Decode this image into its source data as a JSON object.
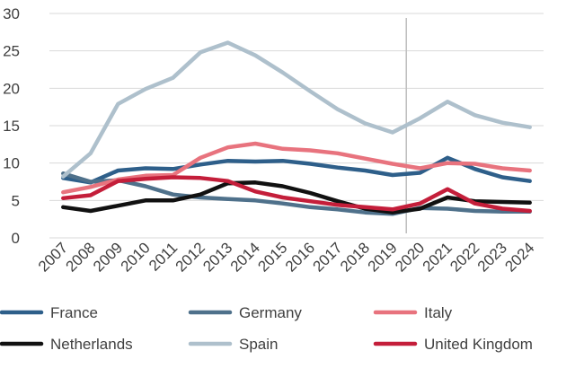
{
  "chart_data": {
    "type": "line",
    "title": "",
    "xlabel": "",
    "ylabel": "",
    "x": [
      "2007",
      "2008",
      "2009",
      "2010",
      "2011",
      "2012",
      "2013",
      "2014",
      "2015",
      "2016",
      "2017",
      "2018",
      "2019",
      "2020",
      "2021",
      "2022",
      "2023",
      "2024"
    ],
    "ylim": [
      0,
      30
    ],
    "yticks": [
      0,
      5,
      10,
      15,
      20,
      25,
      30
    ],
    "grid": "horizontal",
    "legend": "bottom",
    "reference_line_x": "2019",
    "series": [
      {
        "name": "France",
        "color": "#2e5f8a",
        "values": [
          8.0,
          7.4,
          9.0,
          9.3,
          9.2,
          9.8,
          10.3,
          10.2,
          10.3,
          9.9,
          9.4,
          9.0,
          8.4,
          8.7,
          10.7,
          9.2,
          8.1,
          7.6
        ]
      },
      {
        "name": "Germany",
        "color": "#4f718b",
        "values": [
          8.6,
          7.5,
          7.7,
          6.9,
          5.8,
          5.4,
          5.2,
          5.0,
          4.6,
          4.1,
          3.8,
          3.4,
          3.2,
          4.0,
          3.9,
          3.6,
          3.5,
          3.5
        ]
      },
      {
        "name": "Italy",
        "color": "#e8737e",
        "values": [
          6.1,
          6.8,
          7.8,
          8.3,
          8.4,
          10.7,
          12.1,
          12.6,
          11.9,
          11.7,
          11.3,
          10.6,
          9.9,
          9.3,
          10.0,
          9.9,
          9.3,
          9.0
        ]
      },
      {
        "name": "Netherlands",
        "color": "#111111",
        "values": [
          4.1,
          3.6,
          4.3,
          5.0,
          5.0,
          5.8,
          7.3,
          7.4,
          6.9,
          6.0,
          4.9,
          3.9,
          3.4,
          3.9,
          5.4,
          4.9,
          4.8,
          4.7
        ]
      },
      {
        "name": "Spain",
        "color": "#aec0cc",
        "values": [
          8.2,
          11.3,
          17.9,
          19.9,
          21.4,
          24.8,
          26.1,
          24.4,
          22.1,
          19.6,
          17.2,
          15.3,
          14.1,
          16.0,
          18.2,
          16.4,
          15.4,
          14.8
        ]
      },
      {
        "name": "United Kingdom",
        "color": "#c41e3a",
        "values": [
          5.3,
          5.7,
          7.6,
          7.9,
          8.1,
          8.0,
          7.6,
          6.2,
          5.4,
          4.9,
          4.4,
          4.1,
          3.8,
          4.6,
          6.5,
          4.6,
          3.9,
          3.6
        ]
      }
    ]
  }
}
